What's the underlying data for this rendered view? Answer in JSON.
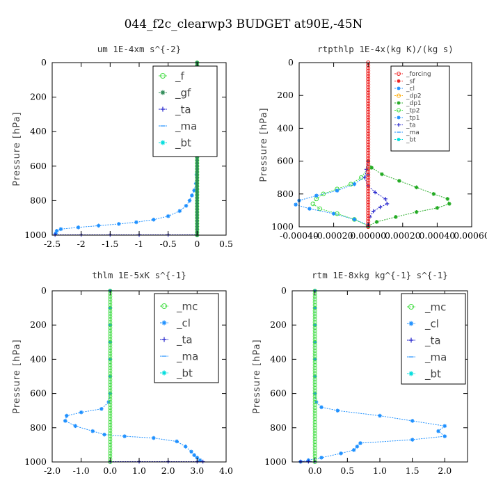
{
  "figure": {
    "title": "044_f2c_clearwp3  BUDGET at90E,-45N"
  },
  "chart_data": [
    {
      "type": "line",
      "title": "um  1E-4xm s^{-2}",
      "xlabel": "",
      "ylabel": "Pressure [hPa]",
      "xlim": [
        -2.5,
        0.5
      ],
      "ylim": [
        1000,
        0
      ],
      "xticks": [
        -2.5,
        -2.0,
        -1.5,
        -1.0,
        -0.5,
        0.0,
        0.5
      ],
      "xtick_labels": [
        "-2.5",
        "-2",
        "-1.5",
        "-1",
        "-0.5",
        "0",
        "0.5"
      ],
      "yticks": [
        0,
        200,
        400,
        600,
        800,
        1000
      ],
      "ytick_labels": [
        "0",
        "200",
        "400",
        "600",
        "800",
        "1000"
      ],
      "legend_position": "top-right",
      "legend_font": 15,
      "legend": [
        "_f",
        "_gf",
        "_ta",
        "_ma",
        "_bt"
      ],
      "series": [
        {
          "name": "_bt",
          "color": "#1e90ff",
          "marker": "star",
          "points": [
            [
              0.0,
              0
            ],
            [
              0.0,
              100
            ],
            [
              0.0,
              200
            ],
            [
              0.0,
              300
            ],
            [
              0.0,
              400
            ],
            [
              0.0,
              500
            ],
            [
              0.0,
              600
            ],
            [
              -0.01,
              650
            ],
            [
              -0.02,
              700
            ],
            [
              -0.05,
              740
            ],
            [
              -0.09,
              770
            ],
            [
              -0.13,
              800
            ],
            [
              -0.19,
              830
            ],
            [
              -0.3,
              860
            ],
            [
              -0.5,
              890
            ],
            [
              -0.75,
              910
            ],
            [
              -1.05,
              925
            ],
            [
              -1.35,
              935
            ],
            [
              -1.7,
              945
            ],
            [
              -2.05,
              955
            ],
            [
              -2.35,
              965
            ],
            [
              -2.42,
              975
            ],
            [
              -2.44,
              990
            ]
          ]
        },
        {
          "name": "_ta",
          "color": "#2222cc",
          "marker": "plus",
          "points": [
            [
              -2.45,
              998
            ],
            [
              -2.0,
              998
            ],
            [
              -1.5,
              998
            ],
            [
              -1.0,
              998
            ],
            [
              -0.5,
              998
            ],
            [
              0.0,
              998
            ]
          ]
        },
        {
          "name": "_f",
          "color": "#44dd44",
          "marker": "circle",
          "points": [
            [
              0.0,
              0
            ],
            [
              0.0,
              1000
            ]
          ]
        },
        {
          "name": "_gf",
          "color": "#2e8b57",
          "marker": "star",
          "points": [
            [
              0.0,
              0
            ],
            [
              0.0,
              1000
            ]
          ]
        }
      ]
    },
    {
      "type": "line",
      "title": "rtpthlp  1E-4x(kg K)/(kg s)",
      "xlabel": "",
      "ylabel": "Pressure [hPa]",
      "xlim": [
        -0.0004,
        0.0006
      ],
      "ylim": [
        1000,
        0
      ],
      "xticks": [
        -0.0004,
        -0.0002,
        0.0,
        0.0002,
        0.0004,
        0.0006
      ],
      "xtick_labels": [
        "-0.00040",
        "-0.00020",
        "0.00000",
        "0.00020",
        "0.00040",
        "0.00060"
      ],
      "yticks": [
        0,
        200,
        400,
        600,
        800,
        1000
      ],
      "ytick_labels": [
        "0",
        "200",
        "400",
        "600",
        "800",
        "1000"
      ],
      "legend_position": "top-right",
      "legend_font": 9,
      "legend": [
        "_forcing",
        "_sf",
        "_cl",
        "_dp2",
        "_dp1",
        "_tp2",
        "_tp1",
        "_ta",
        "_ma",
        "_bt"
      ],
      "series": [
        {
          "name": "_dp1",
          "color": "#22aa22",
          "marker": "star",
          "points": [
            [
              0.0,
              600
            ],
            [
              2e-05,
              640
            ],
            [
              8e-05,
              680
            ],
            [
              0.00018,
              720
            ],
            [
              0.00028,
              760
            ],
            [
              0.00038,
              800
            ],
            [
              0.00046,
              830
            ],
            [
              0.00047,
              860
            ],
            [
              0.0004,
              885
            ],
            [
              0.00028,
              910
            ],
            [
              0.00016,
              940
            ],
            [
              5e-05,
              970
            ],
            [
              0.0,
              995
            ]
          ]
        },
        {
          "name": "_tp2",
          "color": "#44dd44",
          "marker": "circle",
          "points": [
            [
              0.0,
              640
            ],
            [
              -4e-05,
              700
            ],
            [
              -0.0001,
              740
            ],
            [
              -0.00018,
              770
            ],
            [
              -0.00026,
              800
            ],
            [
              -0.0003,
              830
            ],
            [
              -0.00032,
              860
            ],
            [
              -0.00028,
              890
            ],
            [
              -0.00018,
              920
            ],
            [
              -8e-05,
              955
            ],
            [
              0.0,
              995
            ]
          ]
        },
        {
          "name": "_tp1",
          "color": "#1e90ff",
          "marker": "star",
          "points": [
            [
              0.0,
              680
            ],
            [
              -8e-05,
              740
            ],
            [
              -0.00018,
              780
            ],
            [
              -0.0003,
              810
            ],
            [
              -0.0004,
              840
            ],
            [
              -0.00042,
              865
            ],
            [
              -0.00034,
              890
            ],
            [
              -0.0002,
              920
            ],
            [
              -8e-05,
              955
            ],
            [
              0.0,
              990
            ]
          ]
        },
        {
          "name": "_ta",
          "color": "#2222cc",
          "marker": "plus",
          "points": [
            [
              0.0,
              600
            ],
            [
              -1e-05,
              650
            ],
            [
              -2e-05,
              700
            ],
            [
              0.0,
              750
            ],
            [
              4e-05,
              790
            ],
            [
              0.0001,
              830
            ],
            [
              0.00011,
              860
            ],
            [
              7e-05,
              880
            ],
            [
              3e-05,
              905
            ],
            [
              1e-05,
              940
            ],
            [
              0.0,
              990
            ]
          ]
        },
        {
          "name": "_forcing",
          "color": "#ee2222",
          "marker": "circle",
          "points": [
            [
              0.0,
              0
            ],
            [
              0.0,
              1000
            ]
          ]
        }
      ]
    },
    {
      "type": "line",
      "title": "thlm  1E-5xK s^{-1}",
      "xlabel": "",
      "ylabel": "Pressure [hPa]",
      "xlim": [
        -2.0,
        4.0
      ],
      "ylim": [
        1000,
        0
      ],
      "xticks": [
        -2.0,
        -1.0,
        0.0,
        1.0,
        2.0,
        3.0,
        4.0
      ],
      "xtick_labels": [
        "-2.0",
        "-1.0",
        "0.0",
        "1.0",
        "2.0",
        "3.0",
        "4.0"
      ],
      "yticks": [
        0,
        200,
        400,
        600,
        800,
        1000
      ],
      "ytick_labels": [
        "0",
        "200",
        "400",
        "600",
        "800",
        "1000"
      ],
      "legend_position": "top-right",
      "legend_font": 15,
      "legend": [
        "_mc",
        "_cl",
        "_ta",
        "_ma",
        "_bt"
      ],
      "series": [
        {
          "name": "_cl",
          "color": "#1e90ff",
          "marker": "star",
          "points": [
            [
              0.0,
              0
            ],
            [
              0.0,
              100
            ],
            [
              0.0,
              200
            ],
            [
              0.0,
              300
            ],
            [
              0.0,
              400
            ],
            [
              0.0,
              500
            ],
            [
              0.0,
              600
            ],
            [
              -0.05,
              650
            ],
            [
              -0.3,
              690
            ],
            [
              -1.0,
              710
            ],
            [
              -1.5,
              730
            ],
            [
              -1.55,
              760
            ],
            [
              -1.2,
              790
            ],
            [
              -0.6,
              820
            ],
            [
              -0.2,
              840
            ],
            [
              0.5,
              850
            ],
            [
              1.5,
              860
            ],
            [
              2.3,
              880
            ],
            [
              2.6,
              910
            ],
            [
              2.8,
              940
            ],
            [
              2.9,
              960
            ],
            [
              3.0,
              975
            ],
            [
              3.1,
              990
            ]
          ]
        },
        {
          "name": "_ta",
          "color": "#2222cc",
          "marker": "plus",
          "points": [
            [
              0.0,
              998
            ],
            [
              1.0,
              998
            ],
            [
              2.0,
              998
            ],
            [
              3.0,
              998
            ],
            [
              3.2,
              998
            ]
          ]
        },
        {
          "name": "_mc",
          "color": "#44dd44",
          "marker": "circle",
          "points": [
            [
              0.0,
              0
            ],
            [
              0.0,
              1000
            ]
          ]
        }
      ]
    },
    {
      "type": "line",
      "title": "rtm  1E-8xkg kg^{-1} s^{-1}",
      "xlabel": "",
      "ylabel": "Pressure [hPa]",
      "xlim": [
        -0.35,
        2.35
      ],
      "ylim": [
        1000,
        0
      ],
      "xticks": [
        0.0,
        0.5,
        1.0,
        1.5,
        2.0
      ],
      "xtick_labels": [
        "0.0",
        "0.5",
        "1.0",
        "1.5",
        "2.0"
      ],
      "yticks": [
        0,
        200,
        400,
        600,
        800,
        1000
      ],
      "ytick_labels": [
        "0",
        "200",
        "400",
        "600",
        "800",
        "1000"
      ],
      "legend_position": "top-right",
      "legend_font": 15,
      "legend": [
        "_mc",
        "_cl",
        "_ta",
        "_ma",
        "_bt"
      ],
      "series": [
        {
          "name": "_cl",
          "color": "#1e90ff",
          "marker": "star",
          "points": [
            [
              0.0,
              0
            ],
            [
              0.0,
              100
            ],
            [
              0.0,
              200
            ],
            [
              0.0,
              300
            ],
            [
              0.0,
              400
            ],
            [
              0.0,
              500
            ],
            [
              0.0,
              600
            ],
            [
              0.02,
              650
            ],
            [
              0.1,
              680
            ],
            [
              0.35,
              700
            ],
            [
              1.0,
              730
            ],
            [
              1.5,
              760
            ],
            [
              2.0,
              790
            ],
            [
              1.9,
              820
            ],
            [
              2.0,
              850
            ],
            [
              1.5,
              870
            ],
            [
              0.7,
              890
            ],
            [
              0.65,
              910
            ],
            [
              0.6,
              930
            ],
            [
              0.4,
              950
            ],
            [
              0.1,
              975
            ],
            [
              -0.1,
              990
            ],
            [
              -0.22,
              998
            ]
          ]
        },
        {
          "name": "_ta",
          "color": "#2222cc",
          "marker": "plus",
          "points": [
            [
              -0.22,
              998
            ],
            [
              -0.1,
              998
            ],
            [
              0.0,
              998
            ]
          ]
        },
        {
          "name": "_mc",
          "color": "#44dd44",
          "marker": "circle",
          "points": [
            [
              0.0,
              0
            ],
            [
              0.0,
              1000
            ]
          ]
        }
      ]
    }
  ],
  "legend_styles": {
    "_f": {
      "color": "#44dd44",
      "marker": "circle"
    },
    "_gf": {
      "color": "#2e8b57",
      "marker": "star"
    },
    "_ta": {
      "color": "#2222cc",
      "marker": "plus"
    },
    "_ma": {
      "color": "#1e90ff",
      "marker": "dash"
    },
    "_bt": {
      "color": "#00dddd",
      "marker": "star"
    },
    "_mc": {
      "color": "#44dd44",
      "marker": "circle"
    },
    "_cl": {
      "color": "#1e90ff",
      "marker": "star"
    },
    "_forcing": {
      "color": "#ee2222",
      "marker": "circle"
    },
    "_sf": {
      "color": "#ee2222",
      "marker": "star"
    },
    "_dp2": {
      "color": "#ffaa00",
      "marker": "circle"
    },
    "_dp1": {
      "color": "#22aa22",
      "marker": "star"
    },
    "_tp2": {
      "color": "#44dd44",
      "marker": "circle"
    },
    "_tp1": {
      "color": "#1e90ff",
      "marker": "star"
    }
  }
}
